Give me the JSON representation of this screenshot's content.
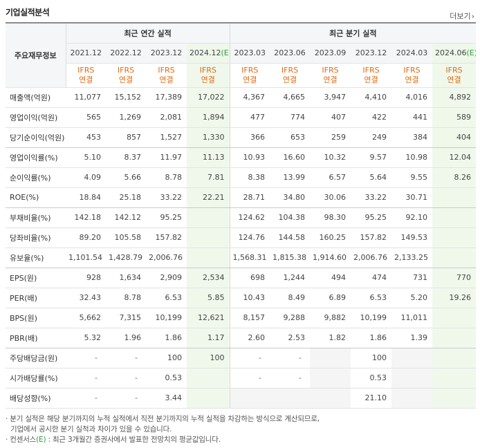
{
  "header": {
    "title": "기업실적분석",
    "more_label": "더보기"
  },
  "table": {
    "corner_label": "주요재무정보",
    "group_annual": "최근 연간 실적",
    "group_quarter": "최근 분기 실적",
    "periods": [
      {
        "label": "2021.12",
        "est": false
      },
      {
        "label": "2022.12",
        "est": false
      },
      {
        "label": "2023.12",
        "est": false
      },
      {
        "label": "2024.12",
        "est": true
      },
      {
        "label": "2023.03",
        "est": false
      },
      {
        "label": "2023.06",
        "est": false
      },
      {
        "label": "2023.09",
        "est": false
      },
      {
        "label": "2023.12",
        "est": false
      },
      {
        "label": "2024.03",
        "est": false
      },
      {
        "label": "2024.06",
        "est": true
      }
    ],
    "est_mark": "(E)",
    "ifrs_top": "IFRS",
    "ifrs_bottom": "연결",
    "rows": [
      {
        "label": "매출액(억원)",
        "values": [
          "11,077",
          "15,152",
          "17,389",
          "17,022",
          "4,367",
          "4,665",
          "3,947",
          "4,410",
          "4,016",
          "4,892"
        ]
      },
      {
        "label": "영업이익(억원)",
        "values": [
          "565",
          "1,269",
          "2,081",
          "1,894",
          "477",
          "774",
          "407",
          "422",
          "441",
          "589"
        ]
      },
      {
        "label": "당기순이익(억원)",
        "values": [
          "453",
          "857",
          "1,527",
          "1,330",
          "366",
          "653",
          "259",
          "249",
          "384",
          "404"
        ]
      },
      {
        "label": "영업이익률(%)",
        "values": [
          "5.10",
          "8.37",
          "11.97",
          "11.13",
          "10.93",
          "16.60",
          "10.32",
          "9.57",
          "10.98",
          "12.04"
        ]
      },
      {
        "label": "순이익률(%)",
        "values": [
          "4.09",
          "5.66",
          "8.78",
          "7.81",
          "8.38",
          "13.99",
          "6.57",
          "5.64",
          "9.55",
          "8.26"
        ]
      },
      {
        "label": "ROE(%)",
        "values": [
          "18.84",
          "25.18",
          "33.22",
          "22.21",
          "28.71",
          "34.80",
          "30.06",
          "33.22",
          "30.71",
          ""
        ]
      },
      {
        "label": "부채비율(%)",
        "values": [
          "142.18",
          "142.12",
          "95.25",
          "",
          "124.62",
          "104.38",
          "98.30",
          "95.25",
          "92.10",
          ""
        ]
      },
      {
        "label": "당좌비율(%)",
        "values": [
          "89.20",
          "105.58",
          "157.82",
          "",
          "124.76",
          "144.58",
          "160.25",
          "157.82",
          "149.53",
          ""
        ]
      },
      {
        "label": "유보율(%)",
        "values": [
          "1,101.54",
          "1,428.79",
          "2,006.76",
          "",
          "1,568.31",
          "1,815.38",
          "1,914.60",
          "2,006.76",
          "2,133.25",
          ""
        ]
      },
      {
        "label": "EPS(원)",
        "values": [
          "928",
          "1,634",
          "2,909",
          "2,534",
          "698",
          "1,244",
          "494",
          "474",
          "731",
          "770"
        ]
      },
      {
        "label": "PER(배)",
        "values": [
          "32.43",
          "8.78",
          "6.53",
          "5.85",
          "10.43",
          "8.49",
          "6.89",
          "6.53",
          "5.20",
          "19.26"
        ]
      },
      {
        "label": "BPS(원)",
        "values": [
          "5,662",
          "7,315",
          "10,199",
          "12,621",
          "8,157",
          "9,288",
          "9,882",
          "10,199",
          "11,011",
          ""
        ]
      },
      {
        "label": "PBR(배)",
        "values": [
          "5.32",
          "1.96",
          "1.86",
          "1.17",
          "2.60",
          "2.53",
          "1.82",
          "1.86",
          "1.39",
          ""
        ]
      },
      {
        "label": "주당배당금(원)",
        "values": [
          "-",
          "-",
          "100",
          "100",
          "-",
          "-",
          "",
          "100",
          "",
          ""
        ]
      },
      {
        "label": "시가배당률(%)",
        "values": [
          "-",
          "-",
          "0.53",
          "",
          "-",
          "-",
          "",
          "0.53",
          "",
          ""
        ]
      },
      {
        "label": "배당성향(%)",
        "values": [
          "-",
          "-",
          "3.44",
          "",
          "",
          "",
          "",
          "21.10",
          "",
          ""
        ]
      }
    ]
  },
  "notes": {
    "line1": "· 분기 실적은 해당 분기까지의 누적 실적에서 직전 분기까지의 누적 실적을 차감하는 방식으로 계산되므로,",
    "line2": "기업에서 공시한 분기 실적과 차이가 있을 수 있습니다.",
    "line3_pre": "· 컨센서스",
    "line3_e": "(E)",
    "line3_post": " : 최근 3개월간 증권사에서 발표한 전망치의 평균값입니다."
  }
}
